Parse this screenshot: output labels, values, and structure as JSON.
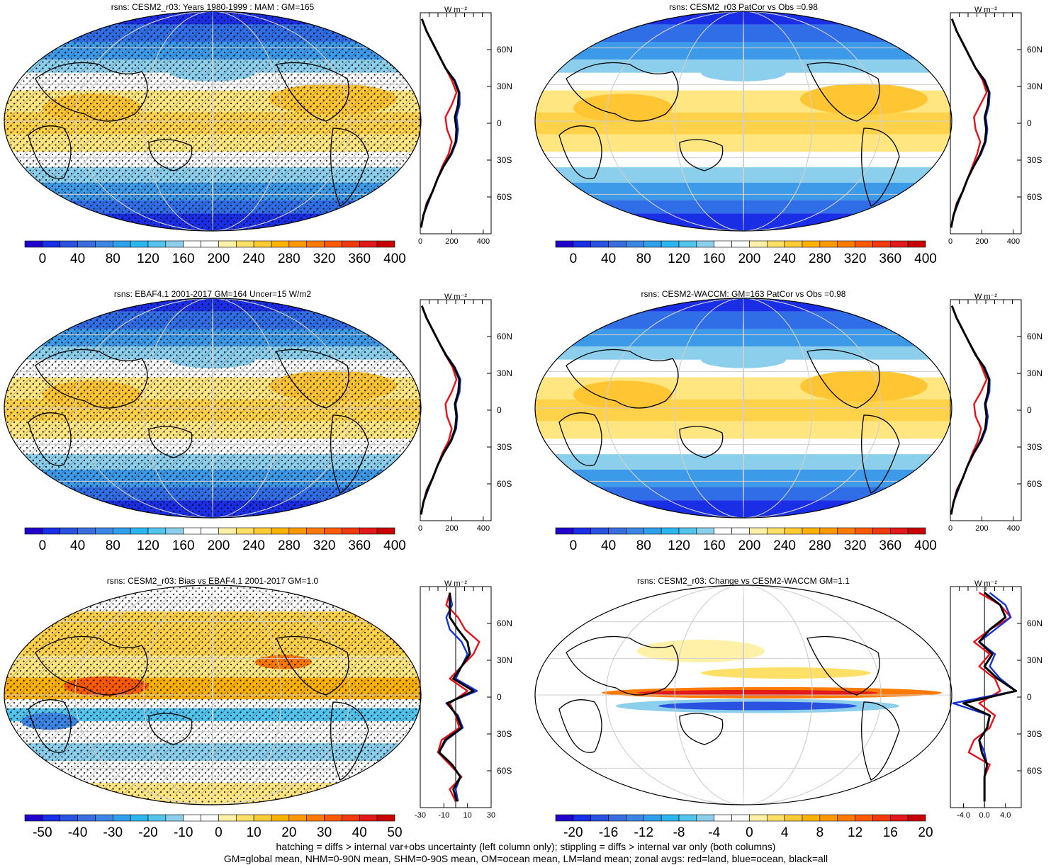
{
  "footer": {
    "line1": "hatching = diffs > internal var+obs uncertainty (left column only); stippling = diffs > internal var only (both columns)",
    "line2": "GM=global mean, NHM=0-90N mean, SHM=0-90S mean, OM=ocean mean, LM=land mean; zonal avgs: red=land, blue=ocean, black=all"
  },
  "units": "W m⁻²",
  "lat_labels": [
    "60N",
    "30N",
    "0",
    "30S",
    "60S"
  ],
  "colors": {
    "land": "#e8101b",
    "ocean": "#1432d8",
    "all": "#000000"
  },
  "panels": [
    {
      "title": "rsns: CESM2_r03: Years 1980-1999 : MAM : GM=165",
      "colorbar": [
        "0",
        "40",
        "80",
        "120",
        "160",
        "200",
        "240",
        "280",
        "320",
        "360",
        "400"
      ],
      "zonal_ticks": [
        "0",
        "200",
        "400"
      ],
      "stipple": true,
      "hatch": true,
      "chart_data": {
        "type": "line",
        "xlim": [
          0,
          450
        ],
        "xticks": [
          0,
          200,
          400
        ],
        "lat": [
          85,
          75,
          65,
          55,
          45,
          35,
          25,
          15,
          5,
          -5,
          -15,
          -25,
          -35,
          -45,
          -55,
          -65,
          -75,
          -85
        ],
        "series": [
          {
            "name": "red=land",
            "values": [
              10,
              40,
              80,
              120,
              160,
              200,
              230,
              200,
              160,
              170,
              200,
              180,
              140,
              110,
              80,
              40,
              20,
              5
            ]
          },
          {
            "name": "blue=ocean",
            "values": [
              10,
              40,
              80,
              120,
              160,
              220,
              250,
              250,
              230,
              240,
              230,
              200,
              150,
              110,
              80,
              50,
              20,
              5
            ]
          },
          {
            "name": "black=all",
            "values": [
              10,
              40,
              80,
              120,
              160,
              215,
              245,
              240,
              220,
              230,
              225,
              195,
              148,
              110,
              80,
              45,
              20,
              5
            ]
          }
        ]
      }
    },
    {
      "title": "rsns: CESM2_r03 PatCor vs Obs =0.98",
      "colorbar": [
        "0",
        "40",
        "80",
        "120",
        "160",
        "200",
        "240",
        "280",
        "320",
        "360",
        "400"
      ],
      "zonal_ticks": [
        "0",
        "200",
        "400"
      ],
      "stipple": false,
      "hatch": false,
      "chart_data": {
        "type": "line",
        "xlim": [
          0,
          450
        ],
        "xticks": [
          0,
          200,
          400
        ],
        "lat": [
          85,
          75,
          65,
          55,
          45,
          35,
          25,
          15,
          5,
          -5,
          -15,
          -25,
          -35,
          -45,
          -55,
          -65,
          -75,
          -85
        ],
        "series": [
          {
            "name": "red=land",
            "values": [
              10,
              40,
              80,
              120,
              160,
              205,
              230,
              190,
              150,
              160,
              190,
              170,
              140,
              110,
              80,
              40,
              20,
              5
            ]
          },
          {
            "name": "blue=ocean",
            "values": [
              10,
              40,
              80,
              120,
              160,
              220,
              250,
              245,
              225,
              235,
              225,
              195,
              150,
              110,
              80,
              50,
              20,
              5
            ]
          },
          {
            "name": "black=all",
            "values": [
              10,
              40,
              80,
              120,
              160,
              215,
              245,
              238,
              218,
              228,
              220,
              190,
              148,
              110,
              80,
              45,
              20,
              5
            ]
          }
        ]
      }
    },
    {
      "title": "rsns: EBAF4.1 2001-2017 GM=164 Uncer=15 W/m2",
      "colorbar": [
        "0",
        "40",
        "80",
        "120",
        "160",
        "200",
        "240",
        "280",
        "320",
        "360",
        "400"
      ],
      "zonal_ticks": [
        "0",
        "200",
        "400"
      ],
      "stipple": true,
      "hatch": true,
      "chart_data": {
        "type": "line",
        "xlim": [
          0,
          450
        ],
        "xticks": [
          0,
          200,
          400
        ],
        "lat": [
          85,
          75,
          65,
          55,
          45,
          35,
          25,
          15,
          5,
          -5,
          -15,
          -25,
          -35,
          -45,
          -55,
          -65,
          -75,
          -85
        ],
        "series": [
          {
            "name": "red=land",
            "values": [
              10,
              40,
              80,
              120,
              160,
              205,
              230,
              200,
              160,
              170,
              200,
              180,
              140,
              110,
              80,
              40,
              20,
              5
            ]
          },
          {
            "name": "blue=ocean",
            "values": [
              10,
              40,
              80,
              120,
              165,
              220,
              255,
              250,
              225,
              235,
              228,
              198,
              150,
              110,
              80,
              50,
              20,
              5
            ]
          },
          {
            "name": "black=all",
            "values": [
              10,
              40,
              80,
              120,
              162,
              215,
              248,
              242,
              220,
              230,
              222,
              194,
              148,
              110,
              80,
              45,
              20,
              5
            ]
          }
        ]
      }
    },
    {
      "title": "rsns: CESM2-WACCM: GM=163 PatCor vs Obs =0.98",
      "colorbar": [
        "0",
        "40",
        "80",
        "120",
        "160",
        "200",
        "240",
        "280",
        "320",
        "360",
        "400"
      ],
      "zonal_ticks": [
        "0",
        "200",
        "400"
      ],
      "stipple": false,
      "hatch": false,
      "chart_data": {
        "type": "line",
        "xlim": [
          0,
          450
        ],
        "xticks": [
          0,
          200,
          400
        ],
        "lat": [
          85,
          75,
          65,
          55,
          45,
          35,
          25,
          15,
          5,
          -5,
          -15,
          -25,
          -35,
          -45,
          -55,
          -65,
          -75,
          -85
        ],
        "series": [
          {
            "name": "red=land",
            "values": [
              10,
              40,
              80,
              120,
              165,
              200,
              230,
              195,
              150,
              160,
              195,
              175,
              140,
              110,
              80,
              40,
              20,
              5
            ]
          },
          {
            "name": "blue=ocean",
            "values": [
              10,
              40,
              80,
              120,
              160,
              218,
              250,
              248,
              225,
              238,
              228,
              198,
              150,
              110,
              80,
              50,
              20,
              5
            ]
          },
          {
            "name": "black=all",
            "values": [
              10,
              40,
              80,
              120,
              160,
              213,
              245,
              240,
              220,
              230,
              222,
              192,
              148,
              110,
              80,
              45,
              20,
              5
            ]
          }
        ]
      }
    },
    {
      "title": "rsns: CESM2_r03: Bias vs EBAF4.1 2001-2017 GM=1.0",
      "colorbar": [
        "-50",
        "-40",
        "-30",
        "-20",
        "-10",
        "0",
        "10",
        "20",
        "30",
        "40",
        "50"
      ],
      "zonal_ticks": [
        "-30",
        "-10",
        "10",
        "30"
      ],
      "stipple": true,
      "hatch": true,
      "chart_data": {
        "type": "line",
        "xlim": [
          -30,
          30
        ],
        "xticks": [
          -30,
          -10,
          10,
          30
        ],
        "lat": [
          85,
          75,
          65,
          55,
          45,
          35,
          25,
          15,
          5,
          -5,
          -15,
          -25,
          -35,
          -45,
          -55,
          -65,
          -75,
          -85
        ],
        "series": [
          {
            "name": "red=land",
            "values": [
              -5,
              -8,
              2,
              8,
              20,
              15,
              5,
              -5,
              10,
              -5,
              0,
              3,
              -12,
              -15,
              -5,
              5,
              -5,
              0
            ]
          },
          {
            "name": "blue=ocean",
            "values": [
              -5,
              -3,
              -8,
              -5,
              5,
              10,
              5,
              0,
              18,
              -8,
              2,
              6,
              -8,
              -14,
              -3,
              4,
              0,
              2
            ]
          },
          {
            "name": "black=all",
            "values": [
              -5,
              -5,
              -5,
              2,
              10,
              12,
              5,
              -2,
              15,
              -7,
              1,
              5,
              -9,
              -14,
              -3,
              4,
              -2,
              1
            ]
          }
        ]
      }
    },
    {
      "title": "rsns: CESM2_r03: Change vs CESM2-WACCM GM=1.1",
      "colorbar": [
        "-20",
        "-16",
        "-12",
        "-8",
        "-4",
        "0",
        "4",
        "8",
        "12",
        "16",
        "20"
      ],
      "zonal_ticks": [
        "-4.0",
        "0.0",
        "4.0"
      ],
      "stipple": false,
      "hatch": false,
      "chart_data": {
        "type": "line",
        "xlim": [
          -6.5,
          7
        ],
        "xticks": [
          -4,
          0,
          4
        ],
        "lat": [
          85,
          75,
          65,
          55,
          45,
          35,
          25,
          15,
          5,
          -5,
          -15,
          -25,
          -35,
          -45,
          -55,
          -65,
          -75,
          -85
        ],
        "series": [
          {
            "name": "red=land",
            "values": [
              -1,
              3,
              5,
              1,
              -2,
              1,
              -1,
              2,
              3,
              -1,
              2,
              1,
              -2,
              -3,
              1,
              0,
              0,
              0
            ]
          },
          {
            "name": "blue=ocean",
            "values": [
              1,
              4,
              5,
              2,
              -1,
              2,
              1,
              3,
              6,
              -6,
              1,
              0.5,
              -1,
              0,
              0.5,
              0,
              0,
              0
            ]
          },
          {
            "name": "black=all",
            "values": [
              0,
              3,
              4,
              1,
              -1,
              1.5,
              0,
              2.5,
              6,
              -4,
              1,
              0.5,
              -1,
              -0.5,
              0.5,
              0,
              0,
              0
            ]
          }
        ]
      }
    }
  ]
}
